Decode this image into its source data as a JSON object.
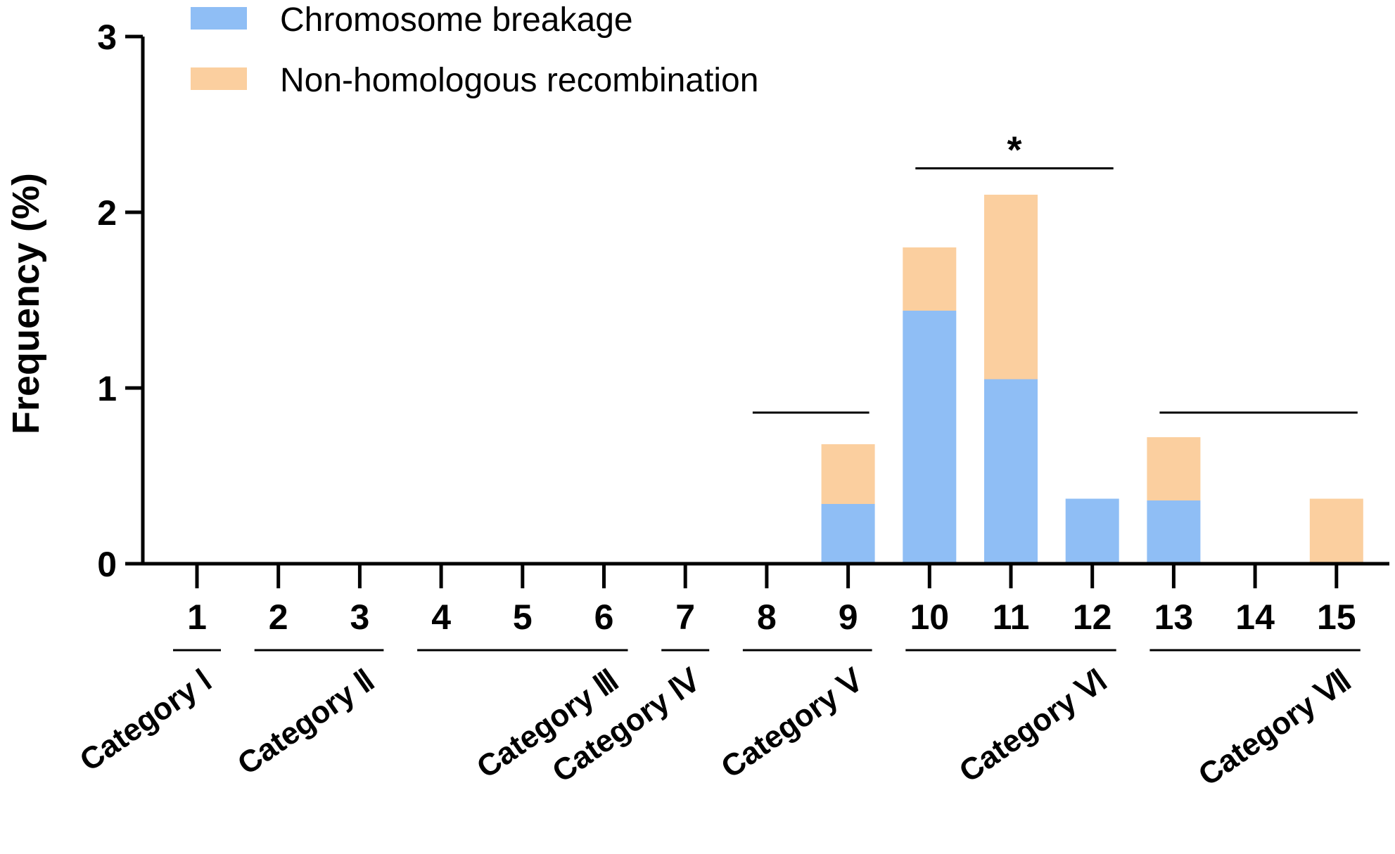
{
  "chart_data": {
    "type": "bar",
    "stacked": true,
    "title": "",
    "xlabel": "",
    "ylabel": "Frequency (%)",
    "ylim": [
      0,
      3
    ],
    "yticks": [
      "0",
      "1",
      "2",
      "3"
    ],
    "categories": [
      "1",
      "2",
      "3",
      "4",
      "5",
      "6",
      "7",
      "8",
      "9",
      "10",
      "11",
      "12",
      "13",
      "14",
      "15"
    ],
    "series": [
      {
        "name": "Chromosome breakage",
        "color": "#8fbef5",
        "values": [
          0,
          0,
          0,
          0,
          0,
          0,
          0,
          0,
          0.34,
          1.44,
          1.05,
          0.37,
          0.36,
          0,
          0
        ]
      },
      {
        "name": "Non-homologous recombination",
        "color": "#fbcf9f",
        "values": [
          0,
          0,
          0,
          0,
          0,
          0,
          0,
          0,
          0.34,
          0.36,
          1.05,
          0,
          0.36,
          0,
          0.37
        ]
      }
    ],
    "groups": [
      {
        "label": "Category Ⅰ",
        "members": [
          "1"
        ]
      },
      {
        "label": "Category Ⅱ",
        "members": [
          "2",
          "3"
        ]
      },
      {
        "label": "Category Ⅲ",
        "members": [
          "4",
          "5",
          "6"
        ]
      },
      {
        "label": "Category Ⅳ",
        "members": [
          "7"
        ]
      },
      {
        "label": "Category Ⅴ",
        "members": [
          "8",
          "9"
        ]
      },
      {
        "label": "Category Ⅵ",
        "members": [
          "10",
          "11",
          "12"
        ]
      },
      {
        "label": "Category Ⅶ",
        "members": [
          "13",
          "14",
          "15"
        ]
      }
    ],
    "group_bars": [
      {
        "group": "Category Ⅴ",
        "value": 0.86,
        "mark": ""
      },
      {
        "group": "Category Ⅵ",
        "value": 2.25,
        "mark": "*"
      },
      {
        "group": "Category Ⅶ",
        "value": 0.86,
        "mark": ""
      }
    ],
    "legend_position": "top-left"
  }
}
